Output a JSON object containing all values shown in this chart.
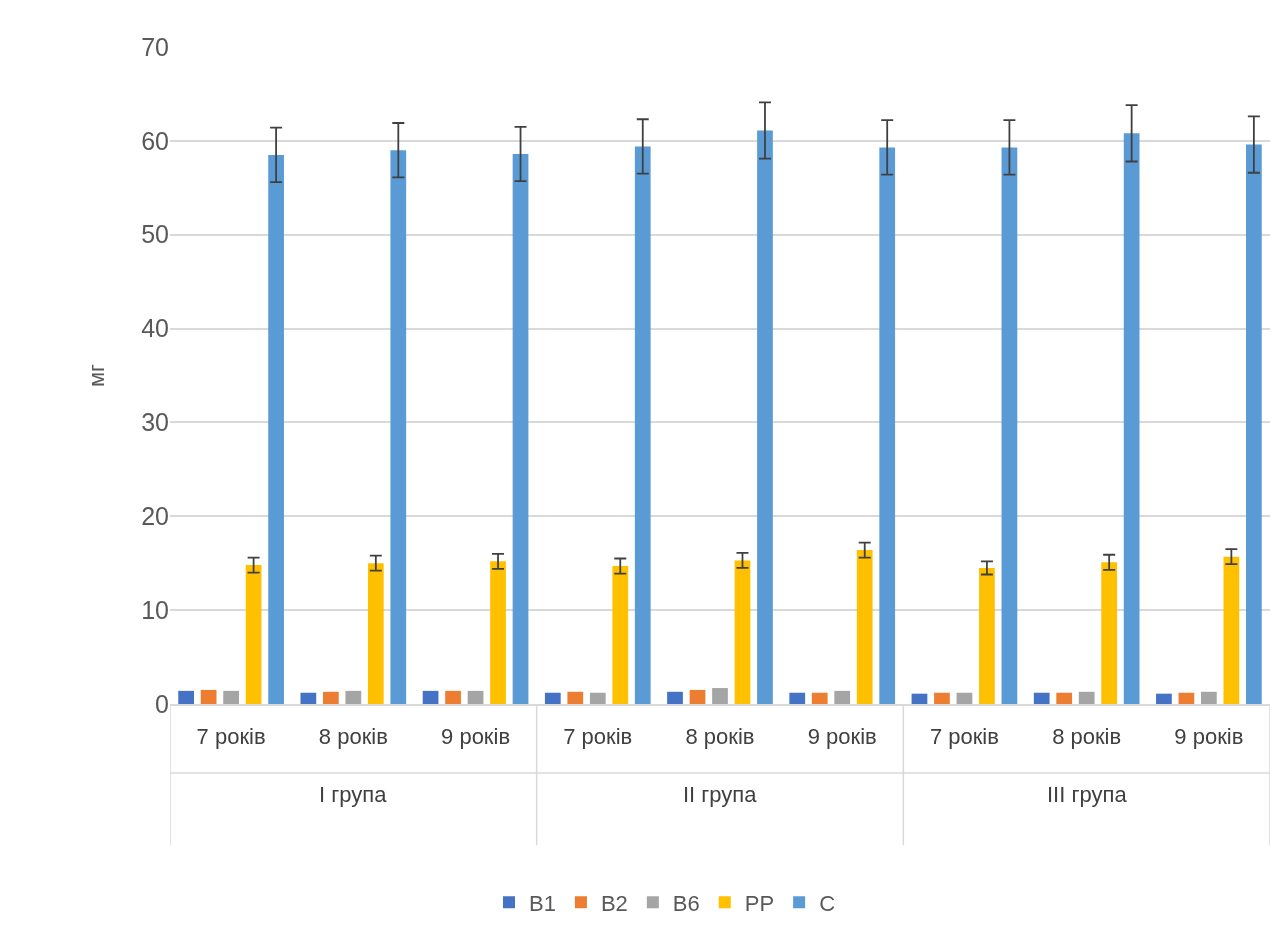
{
  "chart_data": {
    "type": "bar",
    "ylabel": "мг",
    "categories": [
      "7 років",
      "8 років",
      "9 років",
      "7 років",
      "8 років",
      "9 років",
      "7 років",
      "8 років",
      "9 років"
    ],
    "annotations": [
      "I група",
      "II група",
      "III група"
    ],
    "series": [
      {
        "name": "B1",
        "color": "#4472c4",
        "values": [
          1.4,
          1.2,
          1.4,
          1.2,
          1.3,
          1.2,
          1.1,
          1.2,
          1.1
        ]
      },
      {
        "name": "B2",
        "color": "#ed7d31",
        "values": [
          1.5,
          1.3,
          1.4,
          1.3,
          1.5,
          1.2,
          1.2,
          1.2,
          1.2
        ]
      },
      {
        "name": "B6",
        "color": "#a5a5a5",
        "values": [
          1.4,
          1.4,
          1.4,
          1.2,
          1.7,
          1.4,
          1.2,
          1.3,
          1.3
        ]
      },
      {
        "name": "PP",
        "color": "#ffc000",
        "values": [
          14.8,
          15.0,
          15.2,
          14.7,
          15.3,
          16.4,
          14.5,
          15.1,
          15.7
        ],
        "errors": [
          0.8,
          0.8,
          0.8,
          0.8,
          0.8,
          0.8,
          0.7,
          0.8,
          0.8
        ]
      },
      {
        "name": "C",
        "color": "#5b9bd5",
        "values": [
          58.5,
          59.0,
          58.6,
          59.4,
          61.1,
          59.3,
          59.3,
          60.8,
          59.6
        ],
        "errors": [
          2.9,
          2.9,
          2.9,
          2.9,
          3.0,
          2.9,
          2.9,
          3.0,
          3.0
        ]
      }
    ],
    "ylim": [
      0,
      70
    ],
    "yticks": [
      0,
      10,
      20,
      30,
      40,
      50,
      60,
      70
    ],
    "grid": "y",
    "legend": "bottom"
  }
}
